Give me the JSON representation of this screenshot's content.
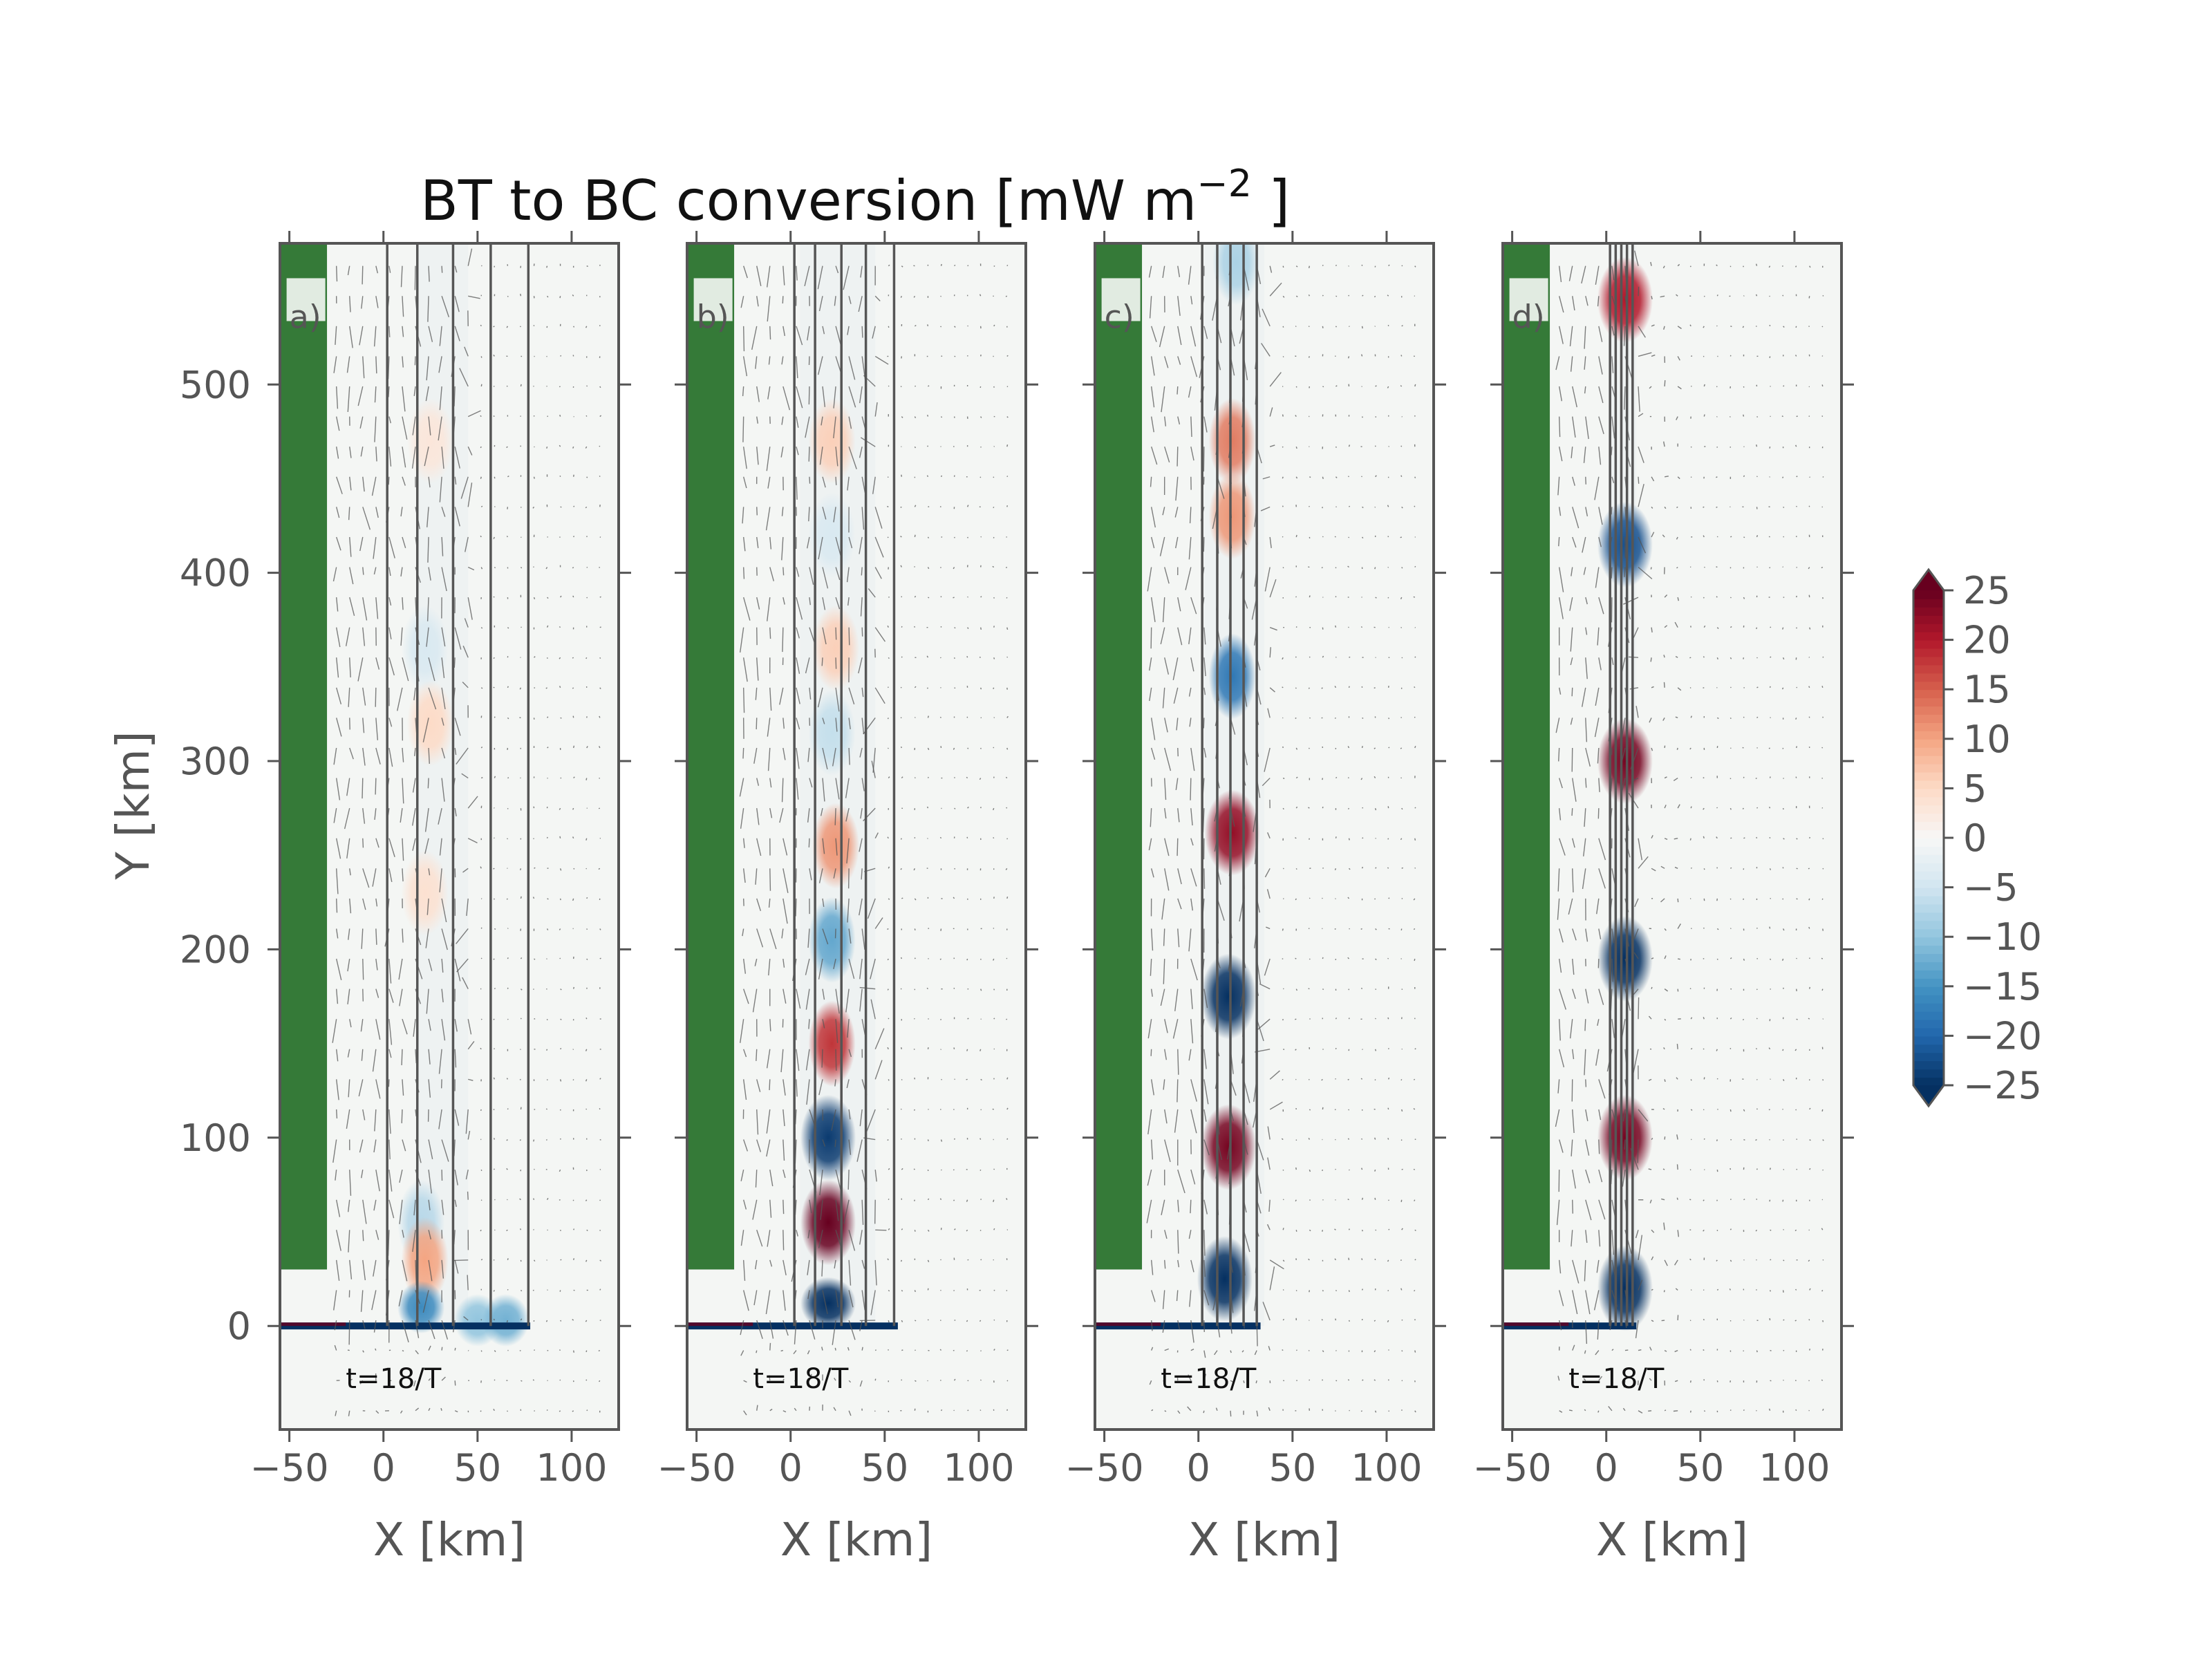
{
  "figure": {
    "title_main": "BT to BC conversion [mW m",
    "title_exp": "−2",
    "title_close": "]"
  },
  "chart_data": {
    "type": "heatmap",
    "title": "BT to BC conversion [mW m−2]",
    "shared_ylabel": "Y [km]",
    "xlim": [
      -55,
      125
    ],
    "ylim": [
      -55,
      575
    ],
    "colormap": "RdBu_r",
    "background_color": "#f4f6f4",
    "land_color": "#357a38",
    "land": {
      "x": [
        -55,
        -30
      ],
      "y": [
        30,
        575
      ],
      "coast_y": 0
    },
    "colorbar": {
      "vmin": -25,
      "vmax": 25,
      "ticks": [
        25,
        20,
        15,
        10,
        5,
        0,
        -5,
        -10,
        -15,
        -20,
        -25
      ],
      "tick_labels": [
        "25",
        "20",
        "15",
        "10",
        "5",
        "0",
        "−5",
        "−10",
        "−15",
        "−20",
        "−25"
      ],
      "extend": "both"
    },
    "panels": [
      {
        "label": "a)",
        "annotation": "t=18/T",
        "xlabel": "X [km]",
        "xticks": [
          -50,
          0,
          50,
          100
        ],
        "xtick_labels": [
          "−50",
          "0",
          "50",
          "100"
        ],
        "yticks": [
          0,
          100,
          200,
          300,
          400,
          500
        ],
        "ytick_labels": [
          "0",
          "100",
          "200",
          "300",
          "400",
          "500"
        ],
        "contour_x": [
          2,
          18,
          37,
          57,
          77
        ],
        "canyon_band_x": [
          18,
          45
        ],
        "canyon_mouth_x": 78,
        "blobs": [
          {
            "x": 25,
            "y": 470,
            "value": 3
          },
          {
            "x": 22,
            "y": 360,
            "value": -4
          },
          {
            "x": 25,
            "y": 320,
            "value": 5
          },
          {
            "x": 22,
            "y": 230,
            "value": 4
          },
          {
            "x": 20,
            "y": 55,
            "value": -7
          },
          {
            "x": 22,
            "y": 35,
            "value": 10
          },
          {
            "x": 20,
            "y": 10,
            "value": -16
          },
          {
            "x": 50,
            "y": 3,
            "value": -10
          },
          {
            "x": 65,
            "y": 3,
            "value": -12
          }
        ]
      },
      {
        "label": "b)",
        "annotation": "t=18/T",
        "xlabel": "X [km]",
        "xticks": [
          -50,
          0,
          50,
          100
        ],
        "xtick_labels": [
          "−50",
          "0",
          "50",
          "100"
        ],
        "yticks": [
          0,
          100,
          200,
          300,
          400,
          500
        ],
        "ytick_labels": [
          "0",
          "100",
          "200",
          "300",
          "400",
          "500"
        ],
        "contour_x": [
          2,
          13,
          27,
          40,
          55
        ],
        "canyon_band_x": [
          5,
          45
        ],
        "canyon_mouth_x": 57,
        "blobs": [
          {
            "x": 22,
            "y": 470,
            "value": 6
          },
          {
            "x": 22,
            "y": 420,
            "value": -4
          },
          {
            "x": 24,
            "y": 360,
            "value": 6
          },
          {
            "x": 22,
            "y": 315,
            "value": -6
          },
          {
            "x": 24,
            "y": 255,
            "value": 11
          },
          {
            "x": 22,
            "y": 205,
            "value": -13
          },
          {
            "x": 22,
            "y": 150,
            "value": 18
          },
          {
            "x": 20,
            "y": 100,
            "value": -24
          },
          {
            "x": 20,
            "y": 55,
            "value": 25
          },
          {
            "x": 20,
            "y": 12,
            "value": -25
          }
        ]
      },
      {
        "label": "c)",
        "annotation": "t=18/T",
        "xlabel": "X [km]",
        "xticks": [
          -50,
          0,
          50,
          100
        ],
        "xtick_labels": [
          "−50",
          "0",
          "50",
          "100"
        ],
        "yticks": [
          0,
          100,
          200,
          300,
          400,
          500
        ],
        "ytick_labels": [
          "0",
          "100",
          "200",
          "300",
          "400",
          "500"
        ],
        "contour_x": [
          2,
          10,
          17,
          24,
          31
        ],
        "canyon_band_x": [
          3,
          35
        ],
        "canyon_mouth_x": 33,
        "blobs": [
          {
            "x": 20,
            "y": 565,
            "value": -8
          },
          {
            "x": 18,
            "y": 470,
            "value": 13
          },
          {
            "x": 18,
            "y": 430,
            "value": 11
          },
          {
            "x": 18,
            "y": 345,
            "value": -18
          },
          {
            "x": 18,
            "y": 262,
            "value": 22
          },
          {
            "x": 16,
            "y": 175,
            "value": -25
          },
          {
            "x": 16,
            "y": 95,
            "value": 24
          },
          {
            "x": 14,
            "y": 25,
            "value": -25
          }
        ]
      },
      {
        "label": "d)",
        "annotation": "t=18/T",
        "xlabel": "X [km]",
        "xticks": [
          -50,
          0,
          50,
          100
        ],
        "xtick_labels": [
          "−50",
          "0",
          "50",
          "100"
        ],
        "yticks": [
          0,
          100,
          200,
          300,
          400,
          500
        ],
        "ytick_labels": [
          "0",
          "100",
          "200",
          "300",
          "400",
          "500"
        ],
        "contour_x": [
          2,
          5,
          8,
          11,
          14
        ],
        "canyon_band_x": [
          2,
          16
        ],
        "canyon_mouth_x": 16,
        "blobs": [
          {
            "x": 10,
            "y": 545,
            "value": 20
          },
          {
            "x": 10,
            "y": 415,
            "value": -22
          },
          {
            "x": 10,
            "y": 300,
            "value": 24
          },
          {
            "x": 10,
            "y": 195,
            "value": -25
          },
          {
            "x": 10,
            "y": 100,
            "value": 24
          },
          {
            "x": 10,
            "y": 20,
            "value": -25
          }
        ]
      }
    ]
  }
}
